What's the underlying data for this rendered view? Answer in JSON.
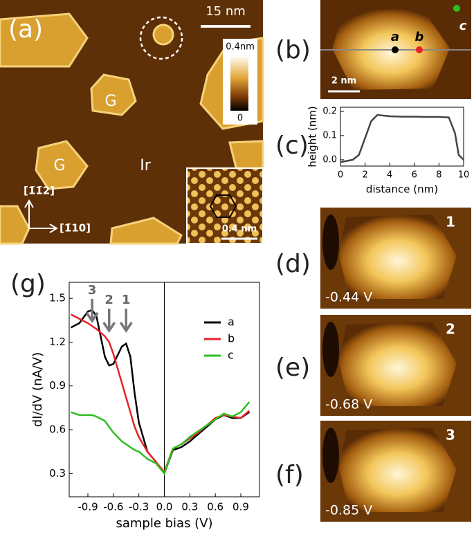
{
  "panels": {
    "a": {
      "label": "(a)",
      "scale": "15 nm",
      "colorbar_max": "0.4nm",
      "colorbar_min": "0",
      "islands": [
        "G",
        "G"
      ],
      "substrate": "Ir",
      "dir_up": "[1̄1̄2]",
      "dir_right": "[1̄10]",
      "inset_scale": "0.4 nm"
    },
    "b": {
      "label": "(b)",
      "points": [
        "a",
        "b",
        "c"
      ],
      "scale": "2 nm"
    },
    "c": {
      "label": "(c)"
    },
    "d": {
      "label": "(d)",
      "index": "1",
      "bias": "-0.44 V"
    },
    "e": {
      "label": "(e)",
      "index": "2",
      "bias": "-0.68 V"
    },
    "f": {
      "label": "(f)",
      "index": "3",
      "bias": "-0.85 V"
    },
    "g": {
      "label": "(g)"
    }
  },
  "chart_data": [
    {
      "type": "line",
      "xlabel": "distance (nm)",
      "ylabel": "height (nm)",
      "color": "#444444",
      "x": [
        0,
        1,
        1.5,
        2,
        2.5,
        3,
        4,
        5,
        6,
        7,
        8,
        8.8,
        9.3,
        9.6,
        10
      ],
      "values": [
        -0.01,
        0.0,
        0.02,
        0.09,
        0.16,
        0.185,
        0.18,
        0.178,
        0.178,
        0.177,
        0.177,
        0.175,
        0.11,
        0.02,
        0.0
      ],
      "xlim": [
        0,
        10
      ],
      "ylim": [
        -0.026,
        0.217
      ],
      "xticks": [
        0,
        2,
        4,
        6,
        8,
        10
      ],
      "yticks": [
        {
          "value": 0,
          "label": "0.0"
        },
        0.1,
        0.2
      ]
    },
    {
      "type": "line",
      "xlabel": "sample bias (V)",
      "ylabel": "dI/dV (nA/V)",
      "x": [
        -1.1,
        -1.0,
        -0.9,
        -0.85,
        -0.8,
        -0.7,
        -0.65,
        -0.6,
        -0.5,
        -0.45,
        -0.4,
        -0.35,
        -0.3,
        -0.2,
        -0.1,
        0,
        0.1,
        0.2,
        0.3,
        0.4,
        0.5,
        0.6,
        0.7,
        0.8,
        0.9,
        1.0
      ],
      "series": [
        {
          "name": "a",
          "color": "#000000",
          "values": [
            1.3,
            1.33,
            1.41,
            1.42,
            1.38,
            1.1,
            1.04,
            1.05,
            1.17,
            1.19,
            1.1,
            0.85,
            0.65,
            0.45,
            0.38,
            0.3,
            0.46,
            0.48,
            0.52,
            0.57,
            0.62,
            0.67,
            0.7,
            0.68,
            0.68,
            0.72
          ]
        },
        {
          "name": "b",
          "color": "#e8212b",
          "values": [
            1.39,
            1.36,
            1.33,
            1.31,
            1.29,
            1.24,
            1.2,
            1.12,
            0.92,
            0.82,
            0.72,
            0.62,
            0.55,
            0.45,
            0.38,
            0.31,
            0.47,
            0.5,
            0.54,
            0.58,
            0.63,
            0.68,
            0.7,
            0.69,
            0.68,
            0.73
          ]
        },
        {
          "name": "c",
          "color": "#2dbf1f",
          "values": [
            0.72,
            0.7,
            0.7,
            0.7,
            0.69,
            0.66,
            0.62,
            0.58,
            0.52,
            0.5,
            0.48,
            0.46,
            0.45,
            0.4,
            0.37,
            0.3,
            0.47,
            0.5,
            0.55,
            0.59,
            0.63,
            0.67,
            0.71,
            0.69,
            0.72,
            0.79
          ]
        }
      ],
      "annotations": [
        {
          "text": "3",
          "x": -0.85
        },
        {
          "text": "2",
          "x": -0.65
        },
        {
          "text": "1",
          "x": -0.45
        }
      ],
      "xlim": [
        -1.12,
        1.12
      ],
      "ylim": [
        0.14,
        1.61
      ],
      "xticks": [
        -0.9,
        -0.6,
        -0.3,
        {
          "value": 0,
          "label": "0.0"
        },
        0.3,
        0.6,
        0.9
      ],
      "yticks": [
        0.3,
        0.6,
        0.9,
        1.2,
        1.5
      ]
    }
  ]
}
